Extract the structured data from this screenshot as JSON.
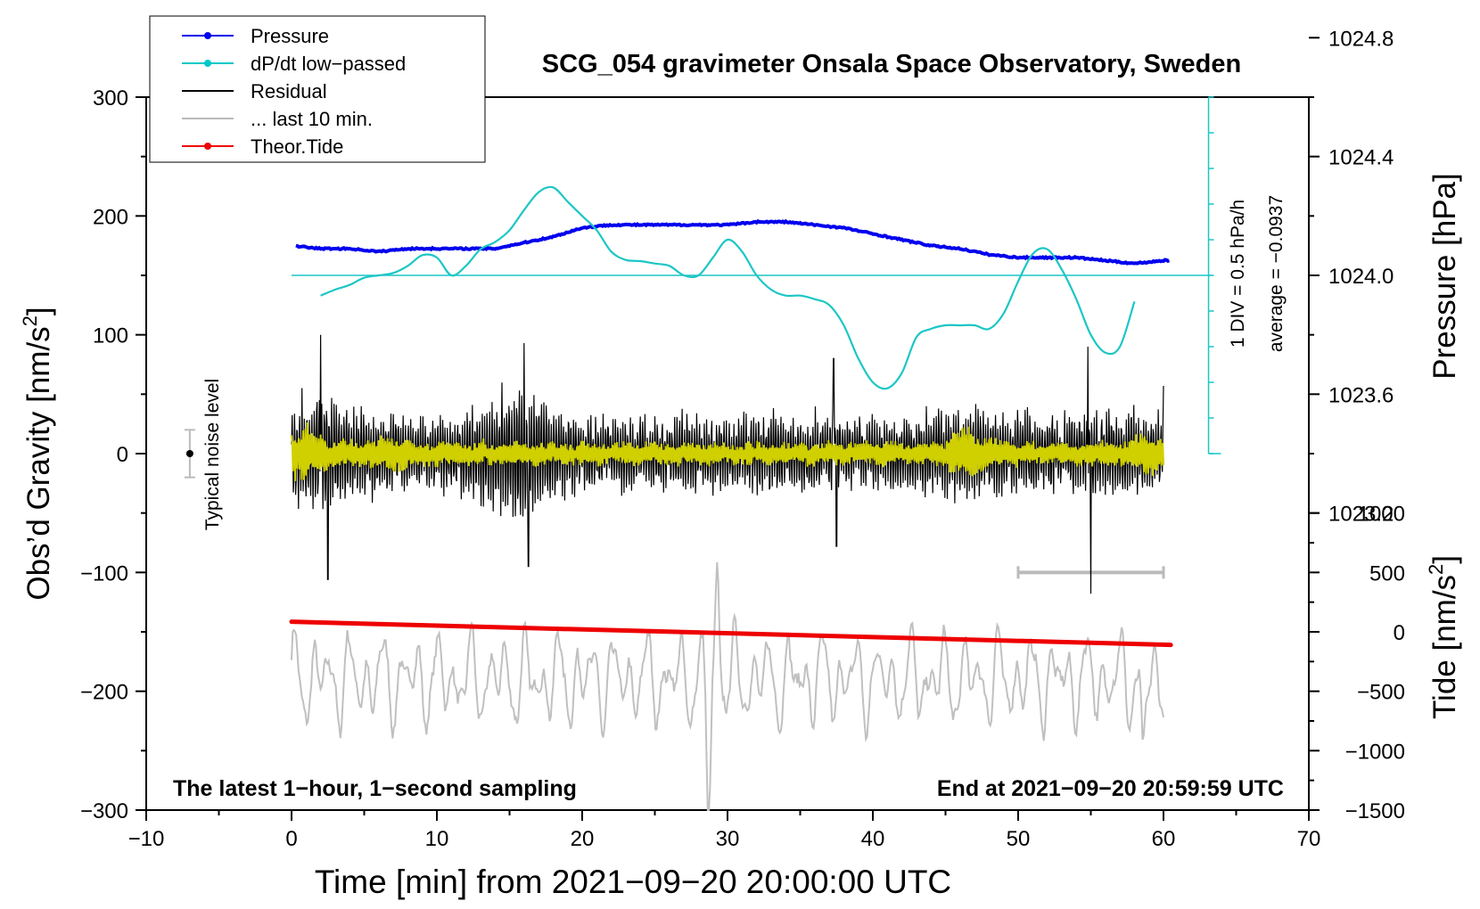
{
  "chart_data": {
    "type": "line",
    "title": "SCG_054 gravimeter Onsala Space Observatory, Sweden",
    "xlabel": "Time [min] from 2021−09−20 20:00:00 UTC",
    "ylabel": "Obs’d Gravity [nm/s²]",
    "ylabel_main": "Obs’d Gravity [nm/s",
    "ylabel_sup": "2",
    "ylabel_tail": "]",
    "y2label": "Pressure [hPa]",
    "y3label_main": "Tide [nm/s",
    "y3label_sup": "2",
    "y3label_tail": "]",
    "xlim": [
      -10,
      70
    ],
    "ylim": [
      -300,
      300
    ],
    "x_ticks": [
      "−10",
      "0",
      "10",
      "20",
      "30",
      "40",
      "50",
      "60",
      "70"
    ],
    "x_tick_values": [
      -10,
      0,
      10,
      20,
      30,
      40,
      50,
      60,
      70
    ],
    "y_ticks": [
      "300",
      "200",
      "100",
      "0",
      "−100",
      "−200",
      "−300"
    ],
    "y_tick_values": [
      300,
      200,
      100,
      0,
      -100,
      -200,
      -300
    ],
    "pressure_ticks": [
      "1024.8",
      "1024.4",
      "1024.0",
      "1023.6",
      "1023.2"
    ],
    "pressure_tick_values": [
      1024.8,
      1024.4,
      1024.0,
      1023.6,
      1023.2
    ],
    "pressure_scale": {
      "p0": 1024.0,
      "g0": 150,
      "g_per_hpa": 250
    },
    "tide_ticks": [
      "1000",
      "500",
      "0",
      "−500",
      "−1000",
      "−1500"
    ],
    "tide_tick_values": [
      1000,
      500,
      0,
      -500,
      -1000,
      -1500
    ],
    "tide_scale": {
      "g0": -150,
      "g_per_unit": 0.1
    },
    "legend": [
      {
        "label": "Pressure",
        "color": "#0000ee",
        "marker": true
      },
      {
        "label": "dP/dt low−passed",
        "color": "#00c8c8",
        "marker": true
      },
      {
        "label": "Residual",
        "color": "#000000",
        "marker": false
      },
      {
        "label": "... last 10 min.",
        "color": "#bbbbbb",
        "marker": false
      },
      {
        "label": "Theor.Tide",
        "color": "#ee0000",
        "marker": true
      }
    ],
    "annotations": {
      "bottom_left": "The latest 1−hour, 1−second sampling",
      "bottom_right": "End at 2021−09−20 20:59:59 UTC",
      "noise": "Typical noise level",
      "div_scale": "1 DIV = 0.5 hPa/h",
      "average": "average = −0.0937"
    },
    "colors": {
      "pressure": "#0000ee",
      "dpdt": "#1cc6c6",
      "residual": "#000000",
      "yellow": "#d0d000",
      "last10": "#c0c0c0",
      "tide": "#ee0000"
    },
    "series": [
      {
        "name": "Pressure",
        "axis": "pressure_hPa",
        "x": [
          0,
          2,
          4,
          6,
          8,
          10,
          12,
          14,
          16,
          18,
          20,
          22,
          24,
          26,
          28,
          30,
          32,
          34,
          36,
          38,
          40,
          42,
          44,
          46,
          48,
          50,
          52,
          54,
          56,
          58,
          60
        ],
        "y": [
          1024.1,
          1024.09,
          1024.09,
          1024.08,
          1024.09,
          1024.09,
          1024.09,
          1024.09,
          1024.11,
          1024.13,
          1024.16,
          1024.17,
          1024.17,
          1024.17,
          1024.17,
          1024.17,
          1024.18,
          1024.18,
          1024.17,
          1024.16,
          1024.14,
          1024.12,
          1024.1,
          1024.09,
          1024.07,
          1024.06,
          1024.06,
          1024.06,
          1024.05,
          1024.04,
          1024.05
        ]
      },
      {
        "name": "dP/dt low−passed",
        "axis": "gravity_scale",
        "x": [
          2,
          3,
          4,
          5,
          6,
          7,
          8,
          9,
          10,
          11,
          12,
          13,
          14,
          15,
          16,
          17,
          18,
          19,
          20,
          21,
          22,
          23,
          24,
          25,
          26,
          27,
          28,
          29,
          30,
          31,
          32,
          33,
          34,
          35,
          36,
          37,
          38,
          39,
          40,
          41,
          42,
          43,
          44,
          45,
          46,
          47,
          48,
          49,
          50,
          51,
          52,
          53,
          54,
          55,
          56,
          57,
          58
        ],
        "y": [
          133,
          138,
          142,
          148,
          150,
          152,
          158,
          167,
          165,
          150,
          158,
          172,
          178,
          188,
          205,
          220,
          224,
          212,
          200,
          188,
          170,
          163,
          162,
          160,
          158,
          150,
          150,
          165,
          180,
          170,
          150,
          138,
          133,
          133,
          130,
          125,
          108,
          80,
          60,
          55,
          68,
          98,
          105,
          108,
          108,
          108,
          105,
          118,
          145,
          168,
          172,
          155,
          130,
          100,
          85,
          90,
          128
        ]
      },
      {
        "name": "Theor.Tide",
        "axis": "tide",
        "x": [
          0,
          60.5
        ],
        "y": [
          85,
          -110
        ]
      },
      {
        "name": "Residual",
        "axis": "gravity",
        "x_range": [
          0,
          60
        ],
        "peaks": [
          {
            "x": 2,
            "y": 100
          },
          {
            "x": 2.5,
            "y": -106
          },
          {
            "x": 16,
            "y": 93
          },
          {
            "x": 16.3,
            "y": -95
          },
          {
            "x": 37.3,
            "y": 80
          },
          {
            "x": 37.5,
            "y": -78
          },
          {
            "x": 54.8,
            "y": 90
          },
          {
            "x": 55,
            "y": -118
          },
          {
            "x": 60,
            "y": 57
          }
        ]
      },
      {
        "name": "... last 10 min.",
        "axis": "gravity_scale",
        "x_range": [
          0,
          60
        ],
        "center": -190,
        "extremes": [
          {
            "x": 28.7,
            "y": -300
          },
          {
            "x": 29.3,
            "y": -95
          },
          {
            "x": 58.6,
            "y": -265
          }
        ],
        "bar_x": [
          50,
          60
        ],
        "bar_y": -100
      }
    ]
  }
}
